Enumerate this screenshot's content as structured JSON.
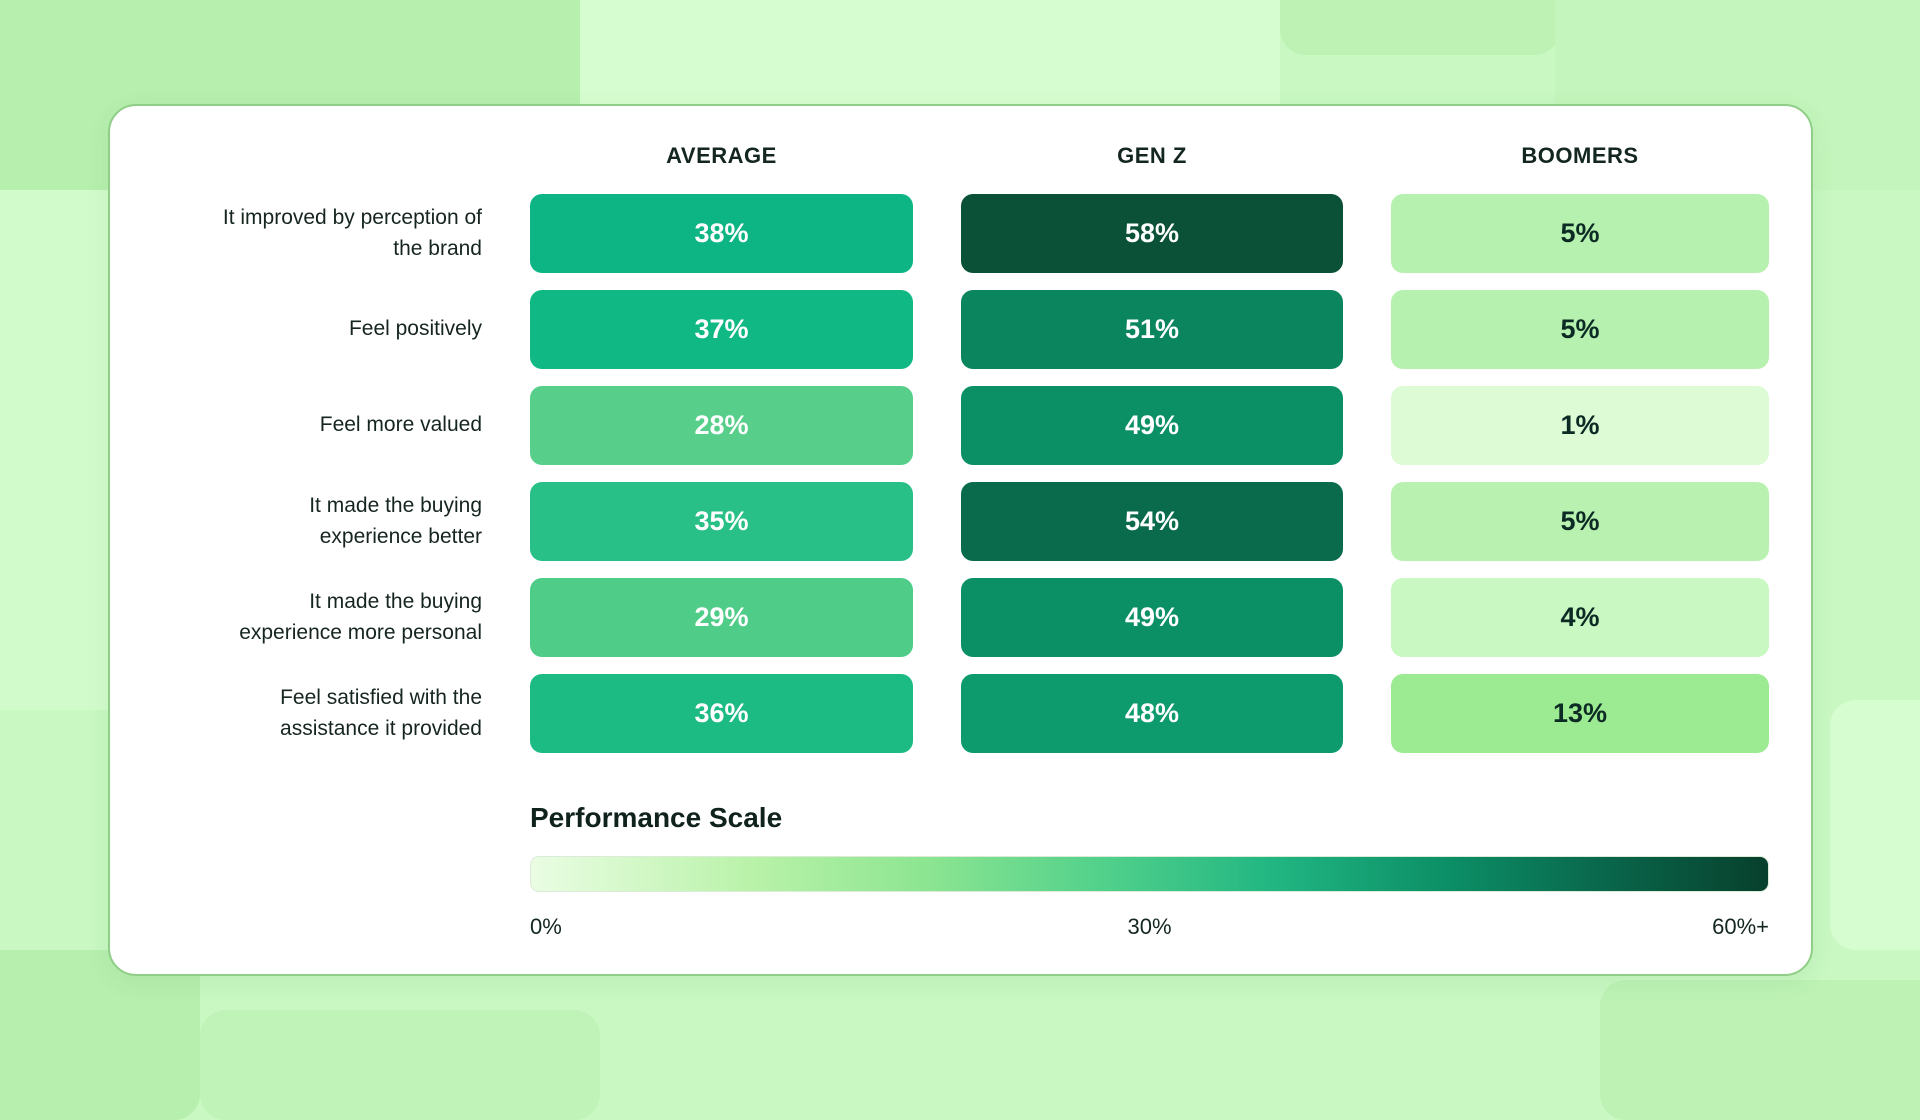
{
  "card": {
    "columns": [
      "AVERAGE",
      "GEN Z",
      "BOOMERS"
    ],
    "rows": [
      {
        "label": "It improved by perception of the brand",
        "cells": [
          {
            "text": "38%",
            "bg": "#0cb583",
            "fg": "#ffffff"
          },
          {
            "text": "58%",
            "bg": "#0a5137",
            "fg": "#ffffff"
          },
          {
            "text": "5%",
            "bg": "#b7f1af",
            "fg": "#0d2b25"
          }
        ]
      },
      {
        "label": "Feel positively",
        "cells": [
          {
            "text": "37%",
            "bg": "#10b884",
            "fg": "#ffffff"
          },
          {
            "text": "51%",
            "bg": "#0a855e",
            "fg": "#ffffff"
          },
          {
            "text": "5%",
            "bg": "#b7f1af",
            "fg": "#0d2b25"
          }
        ]
      },
      {
        "label": "Feel more valued",
        "cells": [
          {
            "text": "28%",
            "bg": "#57cf8b",
            "fg": "#ffffff"
          },
          {
            "text": "49%",
            "bg": "#0b9066",
            "fg": "#ffffff"
          },
          {
            "text": "1%",
            "bg": "#ddfbd4",
            "fg": "#0d2b25"
          }
        ]
      },
      {
        "label": "It made the buying experience better",
        "cells": [
          {
            "text": "35%",
            "bg": "#28c086",
            "fg": "#ffffff"
          },
          {
            "text": "54%",
            "bg": "#096b4c",
            "fg": "#ffffff"
          },
          {
            "text": "5%",
            "bg": "#b9f2b0",
            "fg": "#0d2b25"
          }
        ]
      },
      {
        "label": "It made the buying experience more personal",
        "cells": [
          {
            "text": "29%",
            "bg": "#50cc89",
            "fg": "#ffffff"
          },
          {
            "text": "49%",
            "bg": "#0b9066",
            "fg": "#ffffff"
          },
          {
            "text": "4%",
            "bg": "#c9f8c2",
            "fg": "#0d2b25"
          }
        ]
      },
      {
        "label": "Feel satisfied with the assistance it provided",
        "cells": [
          {
            "text": "36%",
            "bg": "#1dbb84",
            "fg": "#ffffff"
          },
          {
            "text": "48%",
            "bg": "#0d9a6c",
            "fg": "#ffffff"
          },
          {
            "text": "13%",
            "bg": "#9cea91",
            "fg": "#0d2b25"
          }
        ]
      }
    ]
  },
  "scale": {
    "title": "Performance Scale",
    "ticks": [
      "0%",
      "30%",
      "60%+"
    ],
    "gradient": [
      "#eafde3 0%",
      "#b9f2a9 18%",
      "#8ce591 32%",
      "#52d18b 46%",
      "#21b682 60%",
      "#0c8f66 74%",
      "#09664a 87%",
      "#07402d 100%"
    ]
  },
  "chart_data": {
    "type": "heatmap",
    "title": "",
    "categories": [
      "It improved by perception of the brand",
      "Feel positively",
      "Feel more valued",
      "It made the buying experience better",
      "It made the buying experience more personal",
      "Feel satisfied with the assistance it provided"
    ],
    "series": [
      {
        "name": "AVERAGE",
        "values": [
          38,
          37,
          28,
          35,
          29,
          36
        ]
      },
      {
        "name": "GEN Z",
        "values": [
          58,
          51,
          49,
          54,
          49,
          48
        ]
      },
      {
        "name": "BOOMERS",
        "values": [
          5,
          5,
          1,
          5,
          4,
          13
        ]
      }
    ],
    "value_unit": "%",
    "color_scale": {
      "label": "Performance Scale",
      "min": 0,
      "max": 60,
      "min_label": "0%",
      "mid_label": "30%",
      "max_label": "60%+",
      "low_color": "#eafde3",
      "high_color": "#07402d"
    }
  }
}
